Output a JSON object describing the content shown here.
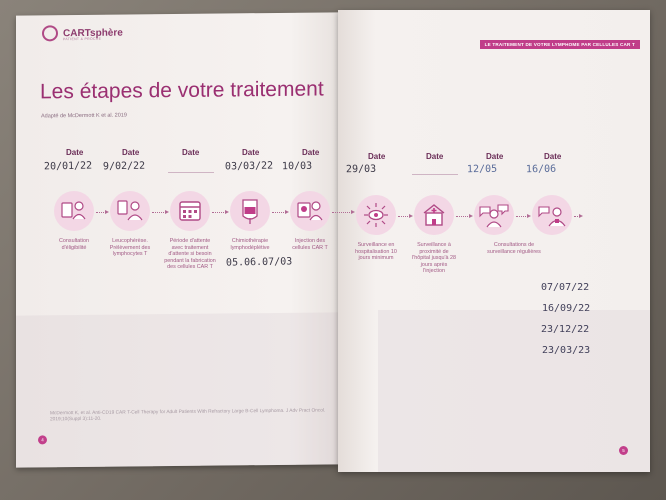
{
  "brand": {
    "name": "CARTsphère",
    "tagline": "PATIENT & PROCHE"
  },
  "banner": "LE TRAITEMENT DE VOTRE LYMPHOME PAR CELLULES CAR T",
  "title": "Les étapes de votre traitement",
  "subtitle": "Adapté de McDermott K et al. 2019",
  "date_label": "Date",
  "steps": [
    {
      "label": "Consultation d'éligibilité",
      "date": "20/01/22",
      "icon": "doctor-clipboard-icon"
    },
    {
      "label": "Leucophérèse. Prélèvement des lymphocytes T",
      "date": "9/02/22",
      "icon": "apheresis-icon"
    },
    {
      "label": "Période d'attente avec traitement d'attente si besoin pendant la fabrication des cellules CAR T",
      "date": "",
      "icon": "calendar-icon"
    },
    {
      "label": "Chimiothérapie lymphodéplétive",
      "date": "03/03/22",
      "note": "05.06.07/03",
      "icon": "infusion-bag-icon"
    },
    {
      "label": "Injection des cellules CAR T",
      "date": "10/03",
      "icon": "injection-icon"
    },
    {
      "label": "Surveillance en hospitalisation 10 jours minimum",
      "date": "29/03",
      "icon": "monitoring-eye-icon"
    },
    {
      "label": "Surveillance à proximité de l'hôpital jusqu'à 28 jours après l'injection",
      "date": "",
      "icon": "hospital-icon"
    },
    {
      "label": "Consultations de surveillance régulières",
      "date": "12/05",
      "icon": "doctor-consultation-icon"
    },
    {
      "label": "",
      "date": "16/06",
      "icon": "doctor-patient-icon"
    }
  ],
  "followup_dates": [
    "07/07/22",
    "16/09/22",
    "23/12/22",
    "23/03/23"
  ],
  "reference": "McDermott K, et al. Anti-CD19 CAR T-Cell Therapy for Adult Patients With Refractory Large B-Cell Lymphoma. J Adv Pract Oncol. 2019;10(Suppl 3):11-20.",
  "page_left": "4",
  "page_right": "5",
  "colors": {
    "accent": "#c03d89",
    "title": "#9a2f71",
    "icon_bg": "#f3d7e5"
  }
}
